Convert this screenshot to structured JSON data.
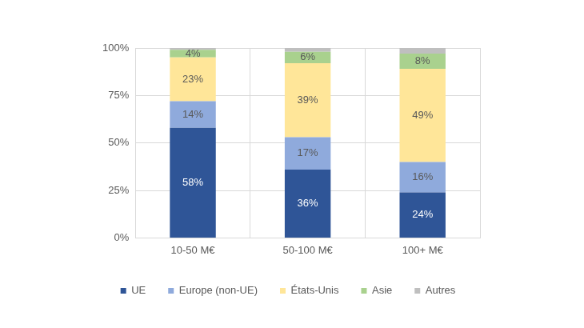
{
  "chart_data": {
    "type": "bar",
    "stacked": true,
    "grid": true,
    "legend": "bottom",
    "data_labels": true,
    "categories": [
      "10-50 M€",
      "50-100 M€",
      "100+ M€"
    ],
    "ylim": [
      0,
      100
    ],
    "yticks": [
      {
        "value": 0,
        "label": "0%"
      },
      {
        "value": 25,
        "label": "25%"
      },
      {
        "value": 50,
        "label": "50%"
      },
      {
        "value": 75,
        "label": "75%"
      },
      {
        "value": 100,
        "label": "100%"
      }
    ],
    "series": [
      {
        "name": "UE",
        "color": "#2f5597",
        "values": [
          58,
          36,
          24
        ],
        "value_labels": [
          "58%",
          "36%",
          "24%"
        ]
      },
      {
        "name": "Europe (non-UE)",
        "color": "#8faadc",
        "values": [
          14,
          17,
          16
        ],
        "value_labels": [
          "14%",
          "17%",
          "16%"
        ]
      },
      {
        "name": "États-Unis",
        "color": "#ffe699",
        "values": [
          23,
          39,
          49
        ],
        "value_labels": [
          "23%",
          "39%",
          "49%"
        ]
      },
      {
        "name": "Asie",
        "color": "#a9d18e",
        "values": [
          4,
          6,
          8
        ],
        "value_labels": [
          "4%",
          "6%",
          "8%"
        ]
      },
      {
        "name": "Autres",
        "color": "#bfbfbf",
        "values": [
          1,
          2,
          3
        ],
        "value_labels": [
          null,
          null,
          null
        ]
      }
    ]
  }
}
